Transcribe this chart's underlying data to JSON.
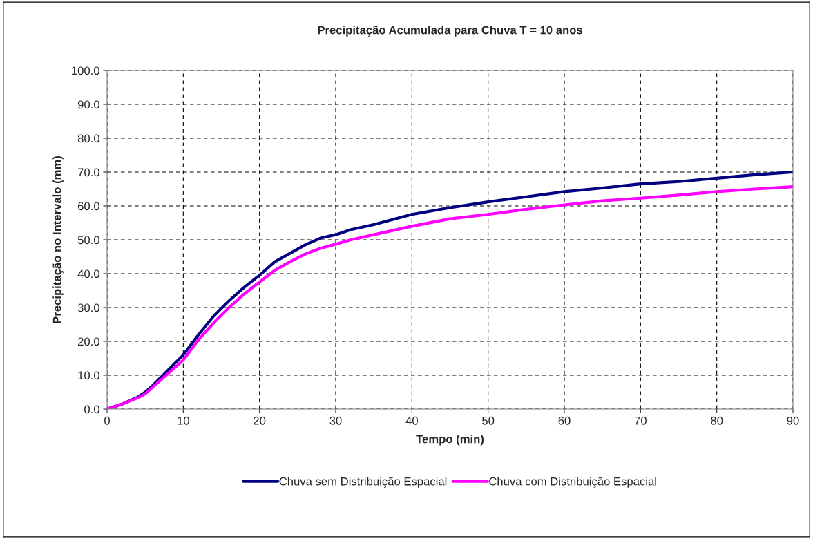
{
  "chart_data": {
    "type": "line",
    "title": "Precipitação Acumulada para Chuva T = 10 anos",
    "xlabel": "Tempo (min)",
    "ylabel": "Precipitação no Intervalo (mm)",
    "x": [
      0,
      2,
      4,
      5,
      6,
      8,
      10,
      12,
      14,
      16,
      18,
      20,
      22,
      24,
      26,
      28,
      30,
      32,
      35,
      40,
      45,
      50,
      55,
      60,
      65,
      70,
      75,
      80,
      85,
      90
    ],
    "series": [
      {
        "name": "Chuva sem Distribuição Espacial",
        "color": "#000080",
        "values": [
          0,
          1.5,
          3.5,
          5,
          7,
          11.5,
          16,
          22,
          27.5,
          32,
          36,
          39.5,
          43.5,
          46,
          48.5,
          50.5,
          51.5,
          53,
          54.5,
          57.5,
          59.5,
          61.2,
          62.7,
          64.2,
          65.3,
          66.5,
          67.2,
          68.2,
          69.2,
          70
        ]
      },
      {
        "name": "Chuva com Distribuição Espacial",
        "color": "#ff00ff",
        "values": [
          0,
          1.5,
          3.3,
          4.5,
          6.5,
          10.5,
          14.5,
          20.5,
          25.5,
          30,
          34,
          37.5,
          41,
          43.5,
          45.8,
          47.5,
          48.7,
          50,
          51.5,
          54,
          56.2,
          57.5,
          59,
          60.3,
          61.5,
          62.3,
          63.2,
          64.2,
          65,
          65.7
        ]
      }
    ],
    "xlim": [
      0,
      90
    ],
    "xticks": [
      0,
      10,
      20,
      30,
      40,
      50,
      60,
      70,
      80,
      90
    ],
    "ylim": [
      0,
      100
    ],
    "yticks": [
      {
        "value": 0,
        "label": "0.0"
      },
      {
        "value": 10,
        "label": "10.0"
      },
      {
        "value": 20,
        "label": "20.0"
      },
      {
        "value": 30,
        "label": "30.0"
      },
      {
        "value": 40,
        "label": "40.0"
      },
      {
        "value": 50,
        "label": "50.0"
      },
      {
        "value": 60,
        "label": "60.0"
      },
      {
        "value": 70,
        "label": "70.0"
      },
      {
        "value": 80,
        "label": "80.0"
      },
      {
        "value": 90,
        "label": "90.0"
      },
      {
        "value": 100,
        "label": "100.0"
      }
    ],
    "grid": true,
    "legend": "bottom",
    "line_style": "solid"
  }
}
